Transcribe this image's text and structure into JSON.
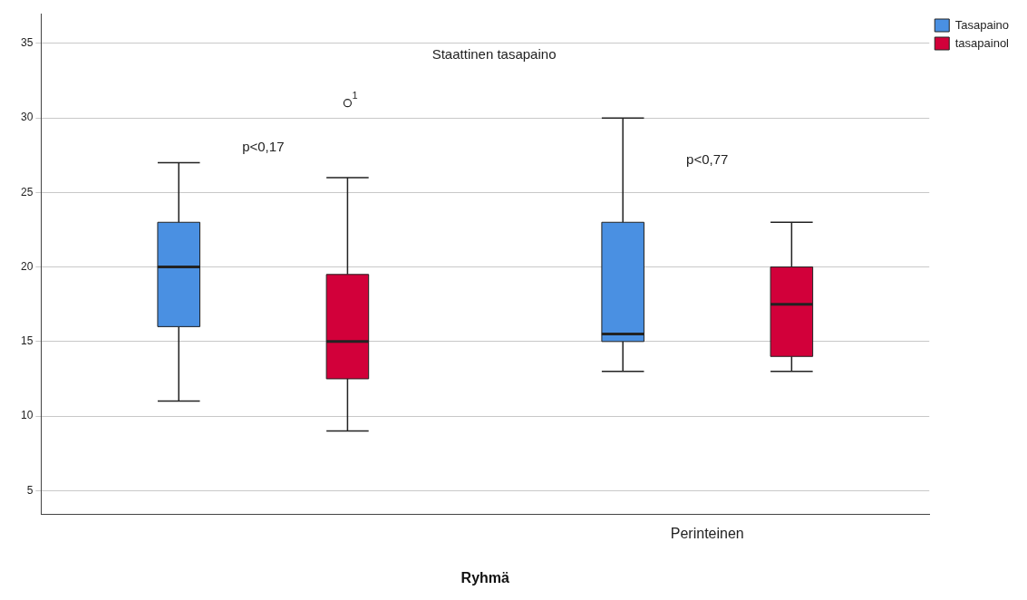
{
  "chart_data": {
    "type": "box",
    "title": "Staattinen tasapaino",
    "xlabel": "Ryhmä",
    "categories": [
      null,
      "Perinteinen"
    ],
    "series": [
      {
        "name": "Tasapaino",
        "color": "#4a90e2",
        "boxes": [
          {
            "low": 11,
            "q1": 16,
            "median": 20,
            "q3": 23,
            "high": 27
          },
          {
            "low": 13,
            "q1": 15,
            "median": 15.5,
            "q3": 23,
            "high": 30
          }
        ]
      },
      {
        "name": "tasapainol",
        "color": "#d2003a",
        "boxes": [
          {
            "low": 9,
            "q1": 12.5,
            "median": 15,
            "q3": 19.5,
            "high": 26,
            "outliers": [
              31
            ]
          },
          {
            "low": 13,
            "q1": 14,
            "median": 17.5,
            "q3": 20,
            "high": 23
          }
        ]
      }
    ],
    "annotations": [
      "p<0,17",
      "p<0,77",
      "1"
    ],
    "ylim": [
      3.4,
      37
    ],
    "yticks": [
      5,
      10,
      15,
      20,
      25,
      30,
      35
    ],
    "grid": "y",
    "legend": "top right"
  }
}
